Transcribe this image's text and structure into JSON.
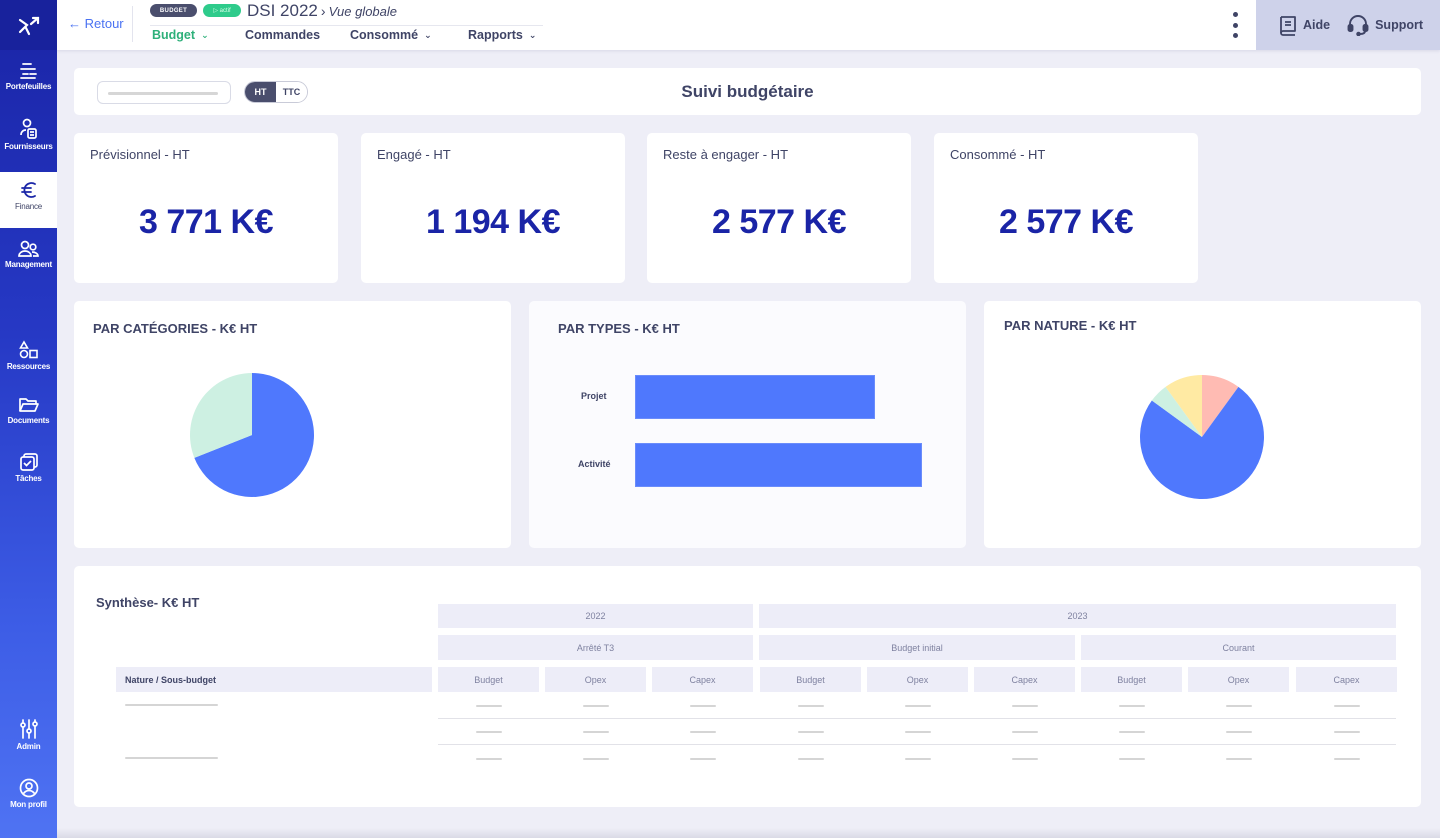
{
  "sidebar": {
    "items": [
      {
        "label": "Portefeuilles",
        "icon": "portfolio-icon"
      },
      {
        "label": "Fournisseurs",
        "icon": "supplier-icon"
      },
      {
        "label": "Finance",
        "icon": "euro-icon",
        "active": true
      },
      {
        "label": "Management",
        "icon": "users-icon"
      },
      {
        "label": "Ressources",
        "icon": "shapes-icon"
      },
      {
        "label": "Documents",
        "icon": "folder-icon"
      },
      {
        "label": "Tâches",
        "icon": "tasks-icon"
      },
      {
        "label": "Admin",
        "icon": "sliders-icon"
      },
      {
        "label": "Mon profil",
        "icon": "profile-icon"
      }
    ]
  },
  "header": {
    "back_label": "← Retour",
    "badge_type": "BUDGET",
    "badge_status": "▷ actif",
    "title": "DSI 2022",
    "separator": "›",
    "subtitle": "Vue globale",
    "nav": [
      {
        "label": "Budget",
        "has_dropdown": true,
        "active": true
      },
      {
        "label": "Commandes",
        "has_dropdown": false
      },
      {
        "label": "Consommé",
        "has_dropdown": true
      },
      {
        "label": "Rapports",
        "has_dropdown": true
      }
    ],
    "help_label": "Aide",
    "support_label": "Support"
  },
  "filters": {
    "toggle": {
      "on": "HT",
      "off": "TTC"
    },
    "title": "Suivi budgétaire"
  },
  "kpis": [
    {
      "label": "Prévisionnel - HT",
      "value": "3 771 K€"
    },
    {
      "label": "Engagé - HT",
      "value": "1 194 K€"
    },
    {
      "label": "Reste à engager - HT",
      "value": "2 577 K€"
    },
    {
      "label": "Consommé - HT",
      "value": "2 577 K€"
    }
  ],
  "charts": {
    "categories_title": "PAR CATÉGORIES  - K€ HT",
    "types_title": "PAR TYPES  - K€ HT",
    "nature_title": "PAR NATURE - K€ HT",
    "types_labels": [
      "Projet",
      "Activité"
    ]
  },
  "chart_data": [
    {
      "type": "pie",
      "title": "PAR CATÉGORIES - K€ HT",
      "slices": [
        {
          "label": "",
          "value": 69,
          "color": "#4f78fd"
        },
        {
          "label": "",
          "value": 31,
          "color": "#cdf0e2"
        }
      ]
    },
    {
      "type": "bar",
      "orientation": "horizontal",
      "title": "PAR TYPES - K€ HT",
      "categories": [
        "Projet",
        "Activité"
      ],
      "values": [
        240,
        287
      ],
      "color": "#4f78fd",
      "xlabel": "",
      "ylabel": ""
    },
    {
      "type": "pie",
      "title": "PAR NATURE - K€ HT",
      "slices": [
        {
          "label": "",
          "value": 10,
          "color": "#ffbbb3"
        },
        {
          "label": "",
          "value": 75,
          "color": "#4f78fd"
        },
        {
          "label": "",
          "value": 5,
          "color": "#cdf0e2"
        },
        {
          "label": "",
          "value": 10,
          "color": "#ffeaa3"
        }
      ]
    }
  ],
  "synthese": {
    "title": "Synthèse- K€ HT",
    "row_header": "Nature / Sous-budget",
    "years": [
      "2022",
      "2023"
    ],
    "groups": [
      "Arrêté T3",
      "Budget initial",
      "Courant"
    ],
    "columns": [
      "Budget",
      "Opex",
      "Capex",
      "Budget",
      "Opex",
      "Capex",
      "Budget",
      "Opex",
      "Capex"
    ]
  },
  "colors": {
    "brand": "#1a24a6",
    "accent_green": "#2eb07a",
    "link_blue": "#4a72f2",
    "chart_blue": "#4f78fd"
  }
}
